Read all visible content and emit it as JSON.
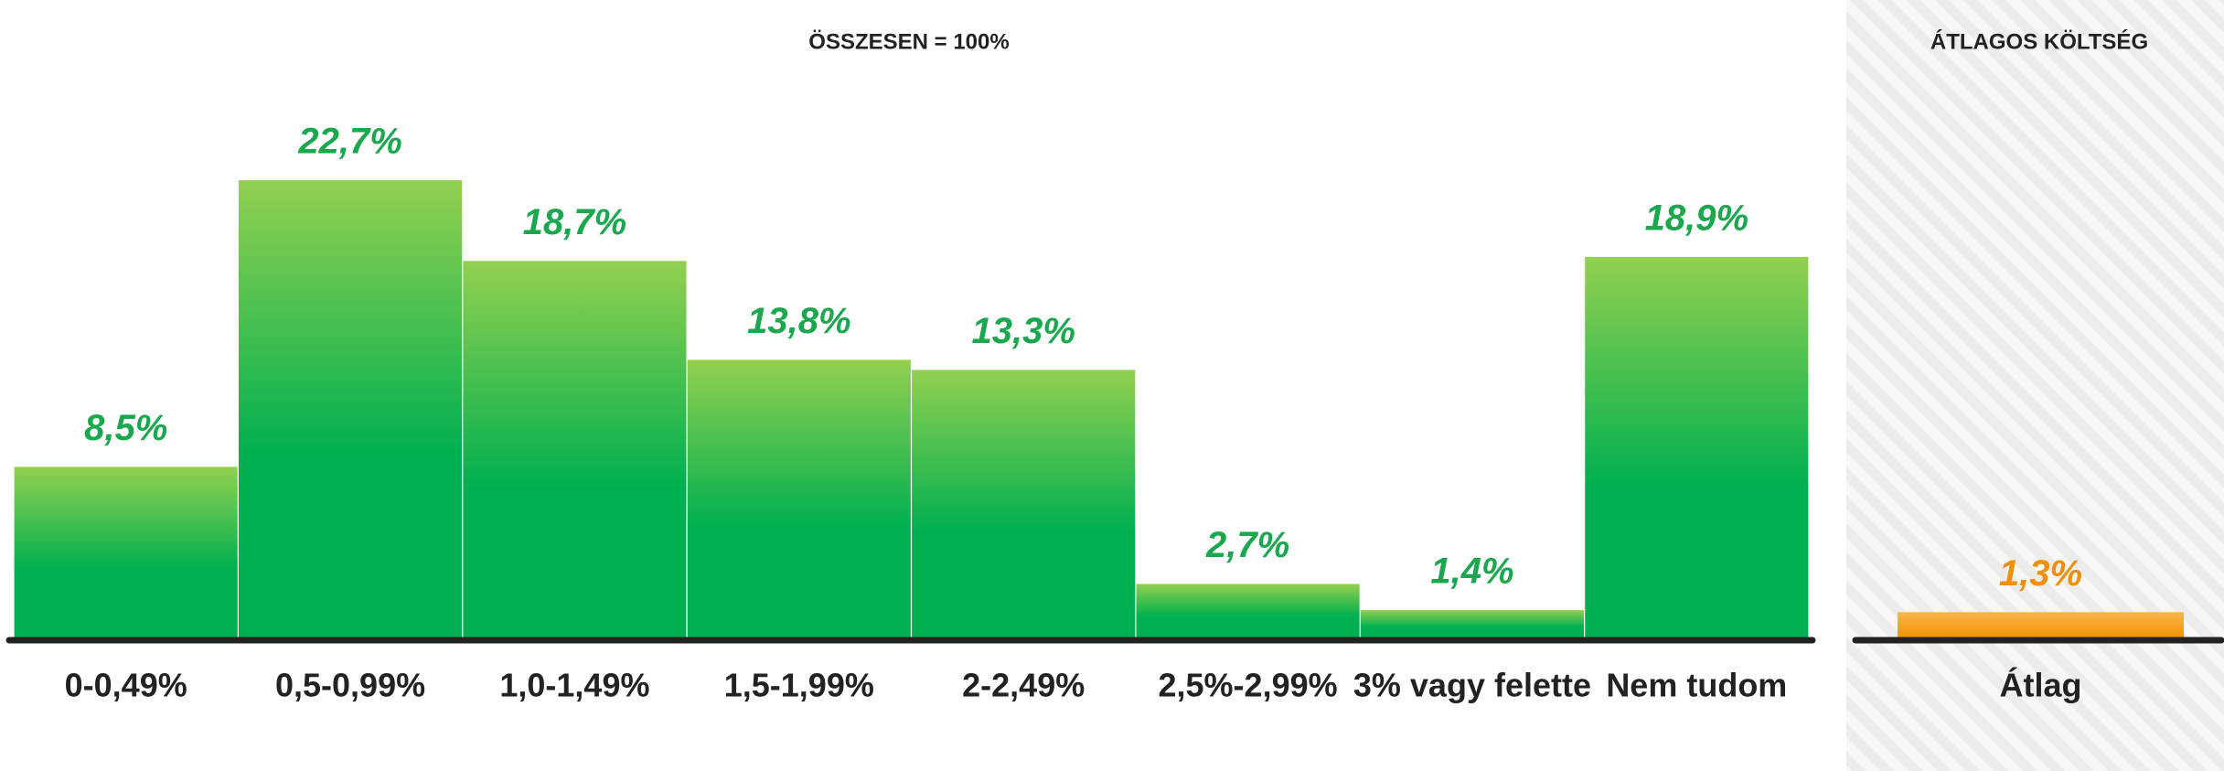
{
  "chart_data": [
    {
      "type": "bar",
      "title": "ÖSSZESEN = 100%",
      "categories": [
        "0-0,49%",
        "0,5-0,99%",
        "1,0-1,49%",
        "1,5-1,99%",
        "2-2,49%",
        "2,5%-2,99%",
        "3% vagy felette",
        "Nem tudom"
      ],
      "values": [
        8.5,
        22.7,
        18.7,
        13.8,
        13.3,
        2.7,
        1.4,
        18.9
      ],
      "value_labels": [
        "8,5%",
        "22,7%",
        "18,7%",
        "13,8%",
        "13,3%",
        "2,7%",
        "1,4%",
        "18,9%"
      ],
      "color": "#00b050"
    },
    {
      "type": "bar",
      "title": "ÁTLAGOS KÖLTSÉG",
      "categories": [
        "Átlag"
      ],
      "values": [
        1.3
      ],
      "value_labels": [
        "1,3%"
      ],
      "color": "#f39200"
    }
  ]
}
